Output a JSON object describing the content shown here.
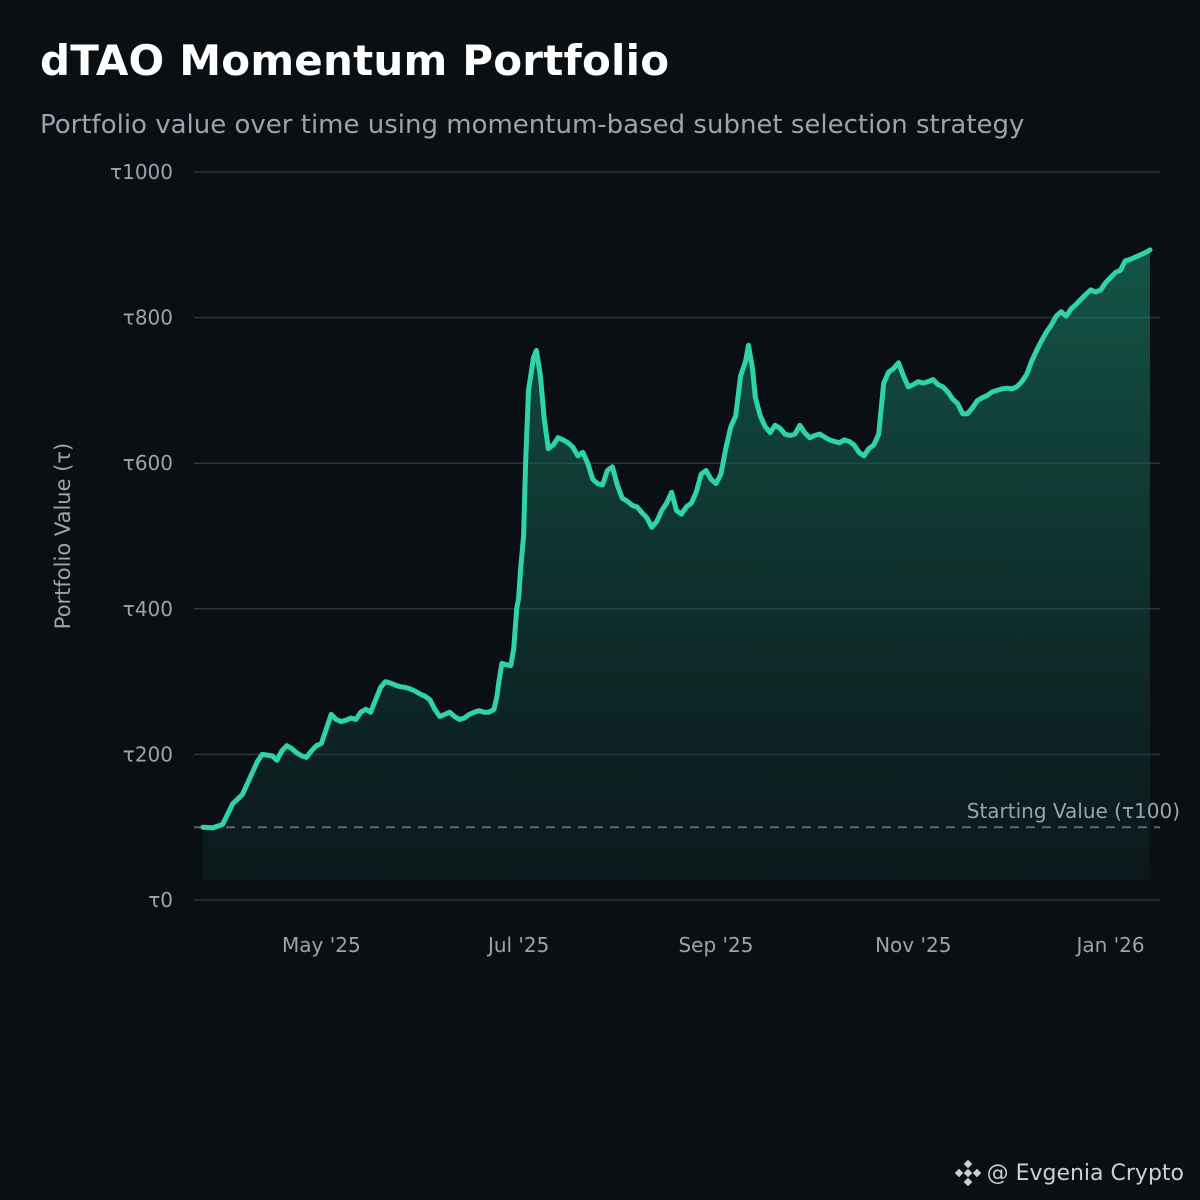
{
  "header": {
    "title": "dTAO Momentum Portfolio",
    "subtitle": "Portfolio value over time using momentum-based subnet selection strategy"
  },
  "watermark": {
    "text": "@ Evgenia Crypto",
    "icon": "diamond-logo-icon"
  },
  "colors": {
    "background": "#0a0f14",
    "line": "#2fd3a8",
    "grid": "#2a3540",
    "axis_text": "#9aa4ad",
    "reference_line": "#5c666f"
  },
  "chart_data": {
    "type": "area",
    "title": "dTAO Momentum Portfolio",
    "xlabel": "",
    "ylabel": "Portfolio Value (τ)",
    "ylim": [
      0,
      1000
    ],
    "xlim": [
      0,
      9.6
    ],
    "y_ticks": [
      {
        "value": 0,
        "label": "τ0"
      },
      {
        "value": 200,
        "label": "τ200"
      },
      {
        "value": 400,
        "label": "τ400"
      },
      {
        "value": 600,
        "label": "τ600"
      },
      {
        "value": 800,
        "label": "τ800"
      },
      {
        "value": 1000,
        "label": "τ1000"
      }
    ],
    "x_ticks": [
      {
        "value": 1.2,
        "label": "May '25"
      },
      {
        "value": 3.2,
        "label": "Jul '25"
      },
      {
        "value": 5.2,
        "label": "Sep '25"
      },
      {
        "value": 7.2,
        "label": "Nov '25"
      },
      {
        "value": 9.2,
        "label": "Jan '26"
      }
    ],
    "x_unit": "months since early April 2025",
    "grid": true,
    "reference_line": {
      "value": 100,
      "label": "Starting Value (τ100)"
    },
    "series": [
      {
        "name": "Portfolio Value",
        "points": [
          [
            0.0,
            100
          ],
          [
            0.1,
            99
          ],
          [
            0.2,
            104
          ],
          [
            0.25,
            118
          ],
          [
            0.3,
            132
          ],
          [
            0.4,
            145
          ],
          [
            0.45,
            160
          ],
          [
            0.55,
            190
          ],
          [
            0.6,
            200
          ],
          [
            0.7,
            198
          ],
          [
            0.75,
            192
          ],
          [
            0.8,
            205
          ],
          [
            0.85,
            212
          ],
          [
            0.9,
            208
          ],
          [
            0.95,
            202
          ],
          [
            1.0,
            198
          ],
          [
            1.05,
            196
          ],
          [
            1.1,
            205
          ],
          [
            1.15,
            212
          ],
          [
            1.2,
            215
          ],
          [
            1.25,
            235
          ],
          [
            1.3,
            255
          ],
          [
            1.35,
            248
          ],
          [
            1.4,
            245
          ],
          [
            1.45,
            247
          ],
          [
            1.5,
            250
          ],
          [
            1.55,
            248
          ],
          [
            1.6,
            258
          ],
          [
            1.65,
            262
          ],
          [
            1.7,
            258
          ],
          [
            1.75,
            275
          ],
          [
            1.8,
            292
          ],
          [
            1.85,
            300
          ],
          [
            1.9,
            298
          ],
          [
            1.95,
            295
          ],
          [
            2.0,
            293
          ],
          [
            2.05,
            292
          ],
          [
            2.1,
            290
          ],
          [
            2.15,
            287
          ],
          [
            2.2,
            283
          ],
          [
            2.25,
            280
          ],
          [
            2.3,
            275
          ],
          [
            2.35,
            262
          ],
          [
            2.4,
            252
          ],
          [
            2.45,
            255
          ],
          [
            2.5,
            258
          ],
          [
            2.55,
            252
          ],
          [
            2.6,
            248
          ],
          [
            2.65,
            250
          ],
          [
            2.7,
            255
          ],
          [
            2.75,
            258
          ],
          [
            2.8,
            260
          ],
          [
            2.85,
            258
          ],
          [
            2.9,
            258
          ],
          [
            2.95,
            262
          ],
          [
            2.98,
            280
          ],
          [
            3.0,
            300
          ],
          [
            3.03,
            325
          ],
          [
            3.08,
            323
          ],
          [
            3.12,
            322
          ],
          [
            3.15,
            345
          ],
          [
            3.18,
            400
          ],
          [
            3.2,
            415
          ],
          [
            3.22,
            455
          ],
          [
            3.25,
            500
          ],
          [
            3.27,
            600
          ],
          [
            3.3,
            700
          ],
          [
            3.35,
            745
          ],
          [
            3.38,
            755
          ],
          [
            3.42,
            720
          ],
          [
            3.46,
            660
          ],
          [
            3.5,
            620
          ],
          [
            3.55,
            625
          ],
          [
            3.6,
            635
          ],
          [
            3.65,
            632
          ],
          [
            3.7,
            628
          ],
          [
            3.75,
            622
          ],
          [
            3.8,
            610
          ],
          [
            3.85,
            615
          ],
          [
            3.9,
            600
          ],
          [
            3.95,
            578
          ],
          [
            4.0,
            572
          ],
          [
            4.05,
            570
          ],
          [
            4.1,
            590
          ],
          [
            4.15,
            595
          ],
          [
            4.2,
            570
          ],
          [
            4.25,
            552
          ],
          [
            4.3,
            548
          ],
          [
            4.35,
            542
          ],
          [
            4.4,
            540
          ],
          [
            4.45,
            532
          ],
          [
            4.5,
            525
          ],
          [
            4.55,
            512
          ],
          [
            4.6,
            520
          ],
          [
            4.65,
            535
          ],
          [
            4.7,
            545
          ],
          [
            4.75,
            560
          ],
          [
            4.8,
            535
          ],
          [
            4.85,
            530
          ],
          [
            4.9,
            540
          ],
          [
            4.95,
            545
          ],
          [
            5.0,
            560
          ],
          [
            5.05,
            585
          ],
          [
            5.1,
            590
          ],
          [
            5.15,
            578
          ],
          [
            5.2,
            572
          ],
          [
            5.25,
            585
          ],
          [
            5.3,
            620
          ],
          [
            5.35,
            650
          ],
          [
            5.4,
            665
          ],
          [
            5.45,
            720
          ],
          [
            5.5,
            740
          ],
          [
            5.53,
            762
          ],
          [
            5.57,
            730
          ],
          [
            5.6,
            690
          ],
          [
            5.65,
            665
          ],
          [
            5.7,
            650
          ],
          [
            5.75,
            642
          ],
          [
            5.8,
            652
          ],
          [
            5.85,
            648
          ],
          [
            5.9,
            640
          ],
          [
            5.95,
            638
          ],
          [
            6.0,
            640
          ],
          [
            6.05,
            652
          ],
          [
            6.1,
            642
          ],
          [
            6.15,
            635
          ],
          [
            6.2,
            638
          ],
          [
            6.25,
            640
          ],
          [
            6.3,
            636
          ],
          [
            6.35,
            632
          ],
          [
            6.4,
            630
          ],
          [
            6.45,
            628
          ],
          [
            6.5,
            632
          ],
          [
            6.55,
            630
          ],
          [
            6.6,
            625
          ],
          [
            6.65,
            615
          ],
          [
            6.7,
            610
          ],
          [
            6.75,
            620
          ],
          [
            6.8,
            625
          ],
          [
            6.85,
            640
          ],
          [
            6.9,
            710
          ],
          [
            6.95,
            725
          ],
          [
            7.0,
            730
          ],
          [
            7.05,
            738
          ],
          [
            7.1,
            720
          ],
          [
            7.15,
            705
          ],
          [
            7.2,
            708
          ],
          [
            7.25,
            712
          ],
          [
            7.3,
            710
          ],
          [
            7.35,
            712
          ],
          [
            7.4,
            715
          ],
          [
            7.45,
            708
          ],
          [
            7.5,
            705
          ],
          [
            7.55,
            698
          ],
          [
            7.6,
            688
          ],
          [
            7.65,
            682
          ],
          [
            7.7,
            668
          ],
          [
            7.75,
            668
          ],
          [
            7.8,
            676
          ],
          [
            7.85,
            686
          ],
          [
            7.9,
            690
          ],
          [
            7.95,
            693
          ],
          [
            8.0,
            698
          ],
          [
            8.05,
            700
          ],
          [
            8.1,
            702
          ],
          [
            8.15,
            703
          ],
          [
            8.2,
            702
          ],
          [
            8.25,
            705
          ],
          [
            8.3,
            712
          ],
          [
            8.35,
            722
          ],
          [
            8.4,
            740
          ],
          [
            8.45,
            755
          ],
          [
            8.5,
            768
          ],
          [
            8.55,
            780
          ],
          [
            8.6,
            790
          ],
          [
            8.65,
            802
          ],
          [
            8.7,
            808
          ],
          [
            8.75,
            802
          ],
          [
            8.8,
            812
          ],
          [
            8.85,
            818
          ],
          [
            8.9,
            825
          ],
          [
            8.95,
            832
          ],
          [
            9.0,
            838
          ],
          [
            9.05,
            835
          ],
          [
            9.1,
            838
          ],
          [
            9.15,
            848
          ],
          [
            9.2,
            855
          ],
          [
            9.25,
            862
          ],
          [
            9.3,
            865
          ],
          [
            9.35,
            878
          ],
          [
            9.4,
            880
          ],
          [
            9.45,
            883
          ],
          [
            9.5,
            886
          ],
          [
            9.55,
            889
          ],
          [
            9.6,
            893
          ]
        ]
      }
    ]
  }
}
